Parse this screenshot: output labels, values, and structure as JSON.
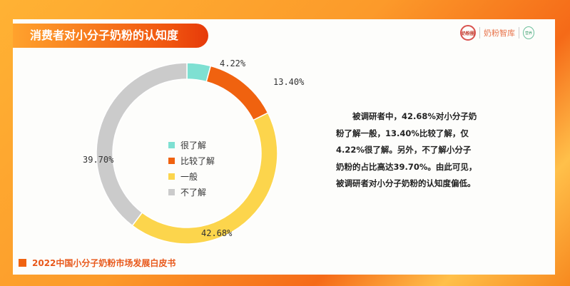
{
  "header": {
    "title": "消费者对小分子奶粉的认知度",
    "logos": [
      "奶粉圈",
      "奶粉智库",
      "营养智库"
    ]
  },
  "chart_data": {
    "type": "pie",
    "donut": true,
    "categories": [
      "很了解",
      "比较了解",
      "一般",
      "不了解"
    ],
    "values": [
      4.22,
      13.4,
      42.68,
      39.7
    ],
    "labels": [
      "4.22%",
      "13.40%",
      "42.68%",
      "39.70%"
    ],
    "colors": [
      "#7ee0d2",
      "#f0620f",
      "#fcd54c",
      "#cbcbcb"
    ],
    "legend_placement": "center"
  },
  "description": "被调研者中，42.68%对小分子奶粉了解一般，13.40%比较了解，仅4.22%很了解。另外，不了解小分子奶粉的占比高达39.70%。由此可见，被调研者对小分子奶粉的认知度偏低。",
  "footer": "2022中国小分子奶粉市场发展白皮书"
}
